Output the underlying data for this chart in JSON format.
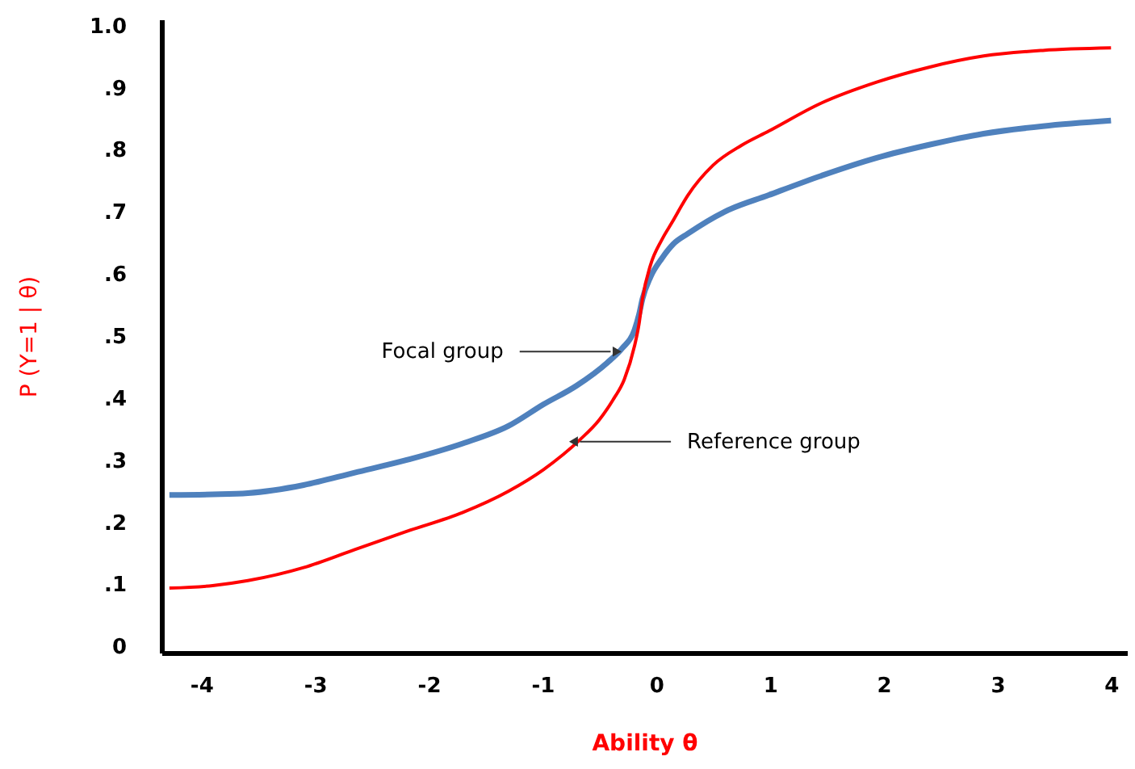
{
  "chart_data": {
    "type": "line",
    "xlabel": "Ability θ",
    "ylabel": "P (Y=1 | θ)",
    "xlim": [
      -4.35,
      4.14
    ],
    "ylim": [
      -0.01,
      1.01
    ],
    "xticks": [
      -4,
      -3,
      -2,
      -1,
      0,
      1,
      2,
      3,
      4
    ],
    "yticks": [
      {
        "value": 0,
        "label": "0"
      },
      {
        "value": 0.1,
        "label": ".1"
      },
      {
        "value": 0.2,
        "label": ".2"
      },
      {
        "value": 0.3,
        "label": ".3"
      },
      {
        "value": 0.4,
        "label": ".4"
      },
      {
        "value": 0.5,
        "label": ".5"
      },
      {
        "value": 0.6,
        "label": ".6"
      },
      {
        "value": 0.7,
        "label": ".7"
      },
      {
        "value": 0.8,
        "label": ".8"
      },
      {
        "value": 0.9,
        "label": ".9"
      },
      {
        "value": 1.0,
        "label": "1.0"
      }
    ],
    "marker": "none",
    "line_style": "solid",
    "series": [
      {
        "color": "#ff0000",
        "x": [
          -4.28,
          -3.9,
          -3.59,
          -3.1,
          -2.65,
          -2.2,
          -1.7,
          -1.3,
          -0.99,
          -0.67,
          -0.5,
          -0.38,
          -0.28,
          -0.19,
          -0.15,
          -0.12,
          -0.05,
          0.05,
          0.14,
          0.28,
          0.5,
          0.75,
          0.99,
          1.45,
          1.94,
          2.4,
          2.88,
          3.4,
          4.0
        ],
        "values": [
          0.094,
          0.098,
          0.106,
          0.127,
          0.156,
          0.185,
          0.216,
          0.25,
          0.285,
          0.333,
          0.365,
          0.397,
          0.43,
          0.484,
          0.52,
          0.56,
          0.614,
          0.655,
          0.683,
          0.727,
          0.775,
          0.807,
          0.83,
          0.875,
          0.909,
          0.933,
          0.951,
          0.96,
          0.964
        ]
      },
      {
        "color": "#4f81bd",
        "x": [
          -4.28,
          -3.9,
          -3.59,
          -3.1,
          -2.65,
          -2.2,
          -1.7,
          -1.3,
          -0.99,
          -0.7,
          -0.43,
          -0.3,
          -0.19,
          -0.15,
          -0.12,
          -0.05,
          0.05,
          0.15,
          0.28,
          0.6,
          0.99,
          1.45,
          1.94,
          2.4,
          2.88,
          3.4,
          4.0
        ],
        "values": [
          0.244,
          0.245,
          0.247,
          0.26,
          0.28,
          0.3,
          0.327,
          0.355,
          0.39,
          0.42,
          0.457,
          0.48,
          0.51,
          0.535,
          0.56,
          0.595,
          0.625,
          0.648,
          0.665,
          0.7,
          0.727,
          0.758,
          0.787,
          0.808,
          0.826,
          0.838,
          0.847
        ]
      }
    ],
    "annotations": [
      {
        "text": "Focal group",
        "x": -0.4,
        "y": 0.475
      },
      {
        "text": "Reference group",
        "x": -0.67,
        "y": 0.33
      }
    ]
  }
}
